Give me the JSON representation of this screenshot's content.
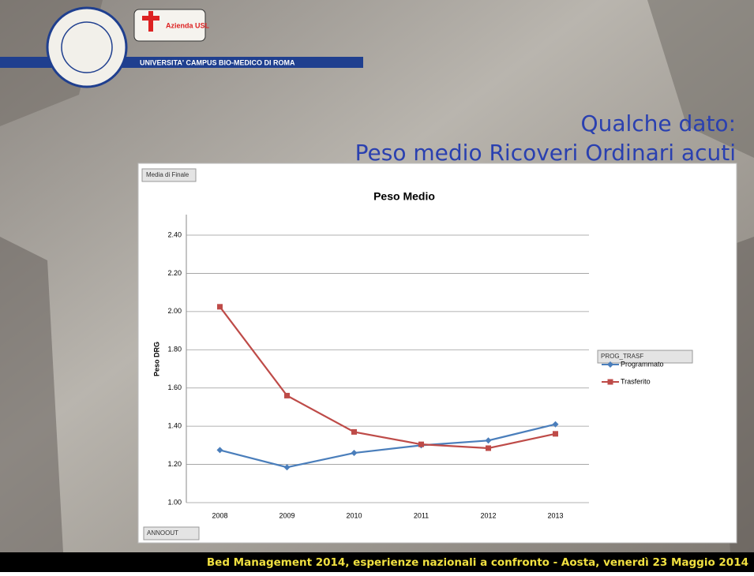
{
  "slide": {
    "logo_text": "Azienda USL",
    "university": "UNIVERSITA' CAMPUS BIO-MEDICO DI ROMA",
    "heading_line1": "Qualche dato:",
    "heading_line2": "Peso medio Ricoveri Ordinari acuti",
    "footer": "Bed Management 2014, esperienze nazionali a confronto  - Aosta, venerdì 23 Maggio  2014"
  },
  "pivot": {
    "value_field": "Media di Finale",
    "axis_field": "ANNOOUT",
    "legend_field": "PROG_TRASF"
  },
  "chart_data": {
    "type": "line",
    "title": "Peso Medio",
    "y_label": "Peso DRG",
    "categories": [
      "2008",
      "2009",
      "2010",
      "2011",
      "2012",
      "2013"
    ],
    "series": [
      {
        "name": "Programmato",
        "color": "#4a7ebb",
        "marker": "diamond",
        "values": [
          1.275,
          1.185,
          1.26,
          1.3,
          1.325,
          1.41
        ]
      },
      {
        "name": "Trasferito",
        "color": "#be4b48",
        "marker": "square",
        "values": [
          2.025,
          1.56,
          1.37,
          1.305,
          1.285,
          1.36
        ]
      }
    ],
    "ylim": [
      1.0,
      2.4
    ],
    "yticks": [
      {
        "value": 1.0,
        "label": "1.00"
      },
      {
        "value": 1.2,
        "label": "1.20"
      },
      {
        "value": 1.4,
        "label": "1.40"
      },
      {
        "value": 1.6,
        "label": "1.60"
      },
      {
        "value": 1.8,
        "label": "1.80"
      },
      {
        "value": 2.0,
        "label": "2.00"
      },
      {
        "value": 2.2,
        "label": "2.20"
      },
      {
        "value": 2.4,
        "label": "2.40"
      }
    ],
    "grid": true,
    "legend": "right"
  }
}
